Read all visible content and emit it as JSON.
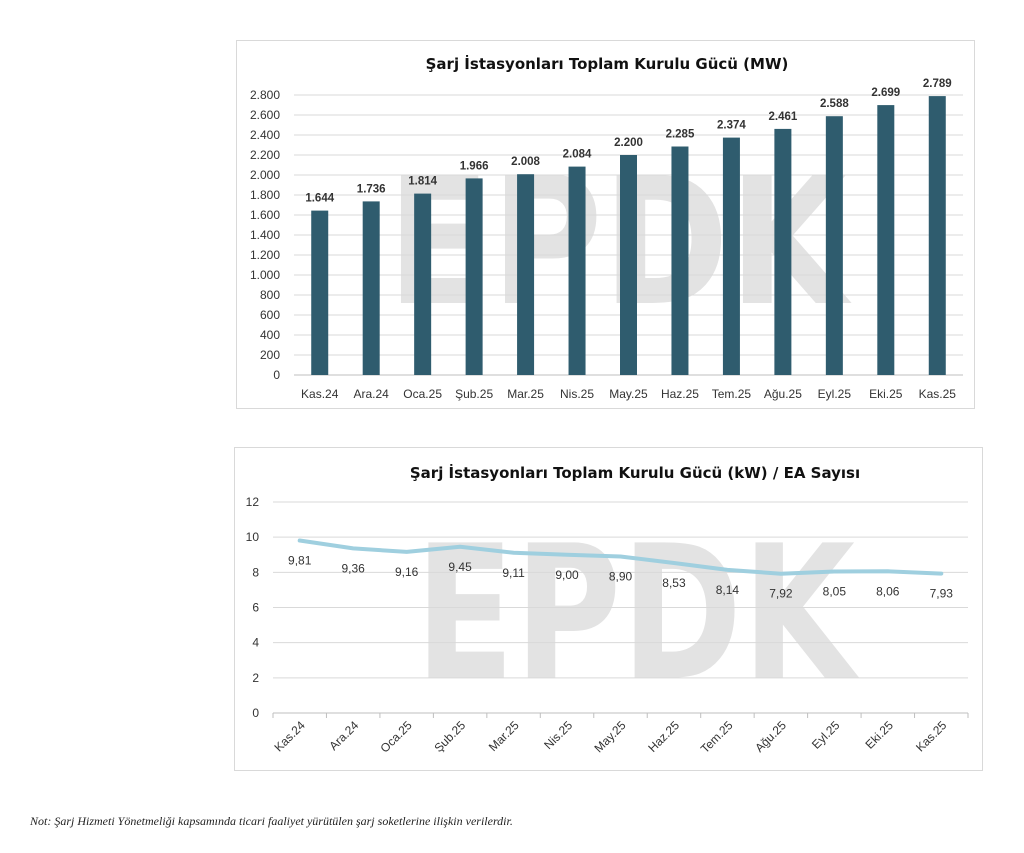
{
  "watermark": "EPDK",
  "footnote": "Not: Şarj Hizmeti Yönetmeliği kapsamında ticari faaliyet yürütülen şarj soketlerine ilişkin verilerdir.",
  "colors": {
    "bar": "#2f5c6e",
    "line": "#9fcfdf",
    "grid": "#d9d9d9",
    "watermark": "#e3e3e3"
  },
  "chart_data": [
    {
      "type": "bar",
      "title": "Şarj İstasyonları Toplam Kurulu Gücü (MW)",
      "categories": [
        "Kas.24",
        "Ara.24",
        "Oca.25",
        "Şub.25",
        "Mar.25",
        "Nis.25",
        "May.25",
        "Haz.25",
        "Tem.25",
        "Ağu.25",
        "Eyl.25",
        "Eki.25",
        "Kas.25"
      ],
      "values": [
        1644,
        1736,
        1814,
        1966,
        2008,
        2084,
        2200,
        2285,
        2374,
        2461,
        2588,
        2699,
        2789
      ],
      "value_labels": [
        "1.644",
        "1.736",
        "1.814",
        "1.966",
        "2.008",
        "2.084",
        "2.200",
        "2.285",
        "2.374",
        "2.461",
        "2.588",
        "2.699",
        "2.789"
      ],
      "ylim": [
        0,
        2800
      ],
      "yticks": [
        0,
        200,
        400,
        600,
        800,
        1000,
        1200,
        1400,
        1600,
        1800,
        2000,
        2200,
        2400,
        2600,
        2800
      ],
      "ytick_labels": [
        "0",
        "200",
        "400",
        "600",
        "800",
        "1.000",
        "1.200",
        "1.400",
        "1.600",
        "1.800",
        "2.000",
        "2.200",
        "2.400",
        "2.600",
        "2.800"
      ],
      "grid": true,
      "xlabel": "",
      "ylabel": ""
    },
    {
      "type": "line",
      "title": "Şarj İstasyonları Toplam Kurulu Gücü (kW) / EA Sayısı",
      "categories": [
        "Kas.24",
        "Ara.24",
        "Oca.25",
        "Şub.25",
        "Mar.25",
        "Nis.25",
        "May.25",
        "Haz.25",
        "Tem.25",
        "Ağu.25",
        "Eyl.25",
        "Eki.25",
        "Kas.25"
      ],
      "values": [
        9.81,
        9.36,
        9.16,
        9.45,
        9.11,
        9.0,
        8.9,
        8.53,
        8.14,
        7.92,
        8.05,
        8.06,
        7.93
      ],
      "value_labels": [
        "9,81",
        "9,36",
        "9,16",
        "9,45",
        "9,11",
        "9,00",
        "8,90",
        "8,53",
        "8,14",
        "7,92",
        "8,05",
        "8,06",
        "7,93"
      ],
      "ylim": [
        0,
        12
      ],
      "yticks": [
        0,
        2,
        4,
        6,
        8,
        10,
        12
      ],
      "ytick_labels": [
        "0",
        "2",
        "4",
        "6",
        "8",
        "10",
        "12"
      ],
      "grid": true,
      "xlabel": "",
      "ylabel": ""
    }
  ]
}
